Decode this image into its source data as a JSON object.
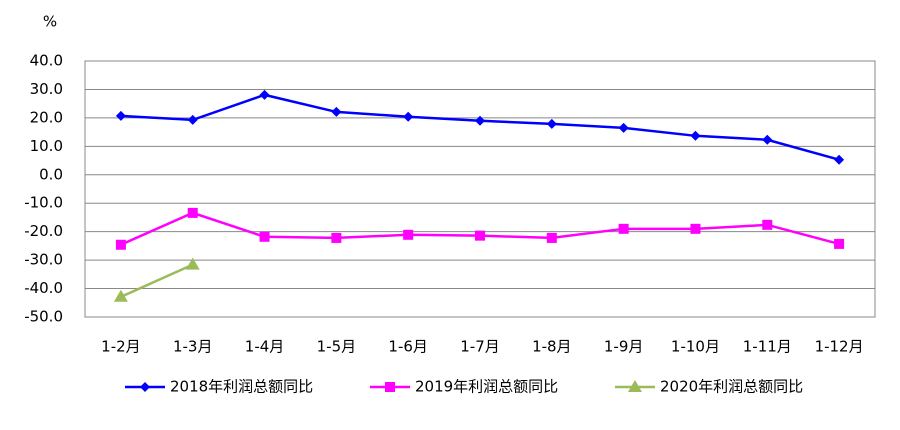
{
  "chart_data": {
    "type": "line",
    "y_label": "%",
    "categories": [
      "1-2月",
      "1-3月",
      "1-4月",
      "1-5月",
      "1-6月",
      "1-7月",
      "1-8月",
      "1-9月",
      "1-10月",
      "1-11月",
      "1-12月"
    ],
    "series": [
      {
        "name": "2018年利润总额同比",
        "color": "#0000ff",
        "marker": "diamond",
        "values": [
          20.7,
          19.3,
          28.1,
          22.1,
          20.4,
          19.0,
          17.9,
          16.5,
          13.7,
          12.3,
          5.3
        ]
      },
      {
        "name": "2019年利润总额同比",
        "color": "#ff00ff",
        "marker": "square",
        "values": [
          -24.6,
          -13.4,
          -21.8,
          -22.2,
          -21.1,
          -21.4,
          -22.2,
          -19.0,
          -19.0,
          -17.6,
          -24.3
        ]
      },
      {
        "name": "2020年利润总额同比",
        "color": "#9bbb59",
        "marker": "triangle",
        "values": [
          -42.9,
          -31.6,
          null,
          null,
          null,
          null,
          null,
          null,
          null,
          null,
          null
        ]
      }
    ],
    "ylim": [
      -50,
      40
    ],
    "yticks": [
      {
        "value": 40,
        "label": "40.0"
      },
      {
        "value": 30,
        "label": "30.0"
      },
      {
        "value": 20,
        "label": "20.0"
      },
      {
        "value": 10,
        "label": "10.0"
      },
      {
        "value": 0,
        "label": "0.0"
      },
      {
        "value": -10,
        "label": "-10.0"
      },
      {
        "value": -20,
        "label": "-20.0"
      },
      {
        "value": -30,
        "label": "-30.0"
      },
      {
        "value": -40,
        "label": "-40.0"
      },
      {
        "value": -50,
        "label": "-50.0"
      }
    ],
    "grid": true,
    "legend": "bottom"
  }
}
